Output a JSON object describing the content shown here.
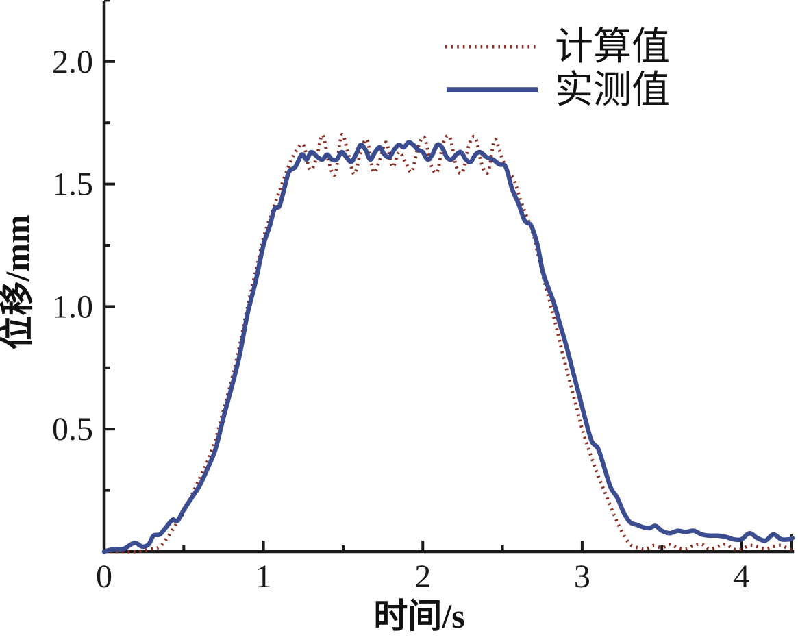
{
  "chart_data": {
    "type": "line",
    "title": "",
    "xlabel": "时间/s",
    "ylabel": "位移/mm",
    "xlim": [
      0,
      4.32
    ],
    "ylim": [
      0,
      2.24
    ],
    "grid": false,
    "legend_position": "top-right-inside",
    "axis_color": "#1a1a1a",
    "x_ticks": {
      "major": [
        0,
        1,
        2,
        3,
        4
      ],
      "major_labels": [
        "0",
        "1",
        "2",
        "3",
        "4"
      ],
      "minor": [
        0.5,
        1.5,
        2.5,
        3.5
      ]
    },
    "y_ticks": {
      "major": [
        0.5,
        1.0,
        1.5,
        2.0
      ],
      "major_labels": [
        "0.5",
        "1.0",
        "1.5",
        "2.0"
      ],
      "minor": [
        0.25,
        0.75,
        1.25,
        1.75,
        2.25
      ]
    },
    "series": [
      {
        "name": "计算值",
        "color": "#8B2E24",
        "line_style": "dotted",
        "points": [
          [
            0.0,
            0.0
          ],
          [
            0.1,
            0.0
          ],
          [
            0.2,
            0.0
          ],
          [
            0.3,
            0.01
          ],
          [
            0.35,
            0.02
          ],
          [
            0.4,
            0.06
          ],
          [
            0.45,
            0.11
          ],
          [
            0.5,
            0.16
          ],
          [
            0.55,
            0.23
          ],
          [
            0.6,
            0.3
          ],
          [
            0.65,
            0.37
          ],
          [
            0.7,
            0.46
          ],
          [
            0.75,
            0.58
          ],
          [
            0.8,
            0.7
          ],
          [
            0.85,
            0.84
          ],
          [
            0.9,
            1.0
          ],
          [
            0.95,
            1.14
          ],
          [
            1.0,
            1.28
          ],
          [
            1.05,
            1.38
          ],
          [
            1.1,
            1.47
          ],
          [
            1.15,
            1.56
          ],
          [
            1.2,
            1.63
          ],
          [
            1.25,
            1.66
          ],
          [
            1.29,
            1.56
          ],
          [
            1.33,
            1.6
          ],
          [
            1.37,
            1.7
          ],
          [
            1.41,
            1.59
          ],
          [
            1.45,
            1.54
          ],
          [
            1.49,
            1.7
          ],
          [
            1.53,
            1.63
          ],
          [
            1.57,
            1.54
          ],
          [
            1.61,
            1.63
          ],
          [
            1.65,
            1.68
          ],
          [
            1.69,
            1.55
          ],
          [
            1.73,
            1.6
          ],
          [
            1.77,
            1.67
          ],
          [
            1.81,
            1.57
          ],
          [
            1.85,
            1.63
          ],
          [
            1.89,
            1.59
          ],
          [
            1.93,
            1.55
          ],
          [
            1.97,
            1.65
          ],
          [
            2.01,
            1.69
          ],
          [
            2.05,
            1.58
          ],
          [
            2.09,
            1.55
          ],
          [
            2.13,
            1.67
          ],
          [
            2.17,
            1.69
          ],
          [
            2.21,
            1.57
          ],
          [
            2.25,
            1.55
          ],
          [
            2.29,
            1.66
          ],
          [
            2.33,
            1.69
          ],
          [
            2.37,
            1.58
          ],
          [
            2.41,
            1.55
          ],
          [
            2.45,
            1.68
          ],
          [
            2.49,
            1.62
          ],
          [
            2.53,
            1.55
          ],
          [
            2.57,
            1.52
          ],
          [
            2.61,
            1.44
          ],
          [
            2.65,
            1.37
          ],
          [
            2.69,
            1.3
          ],
          [
            2.72,
            1.22
          ],
          [
            2.76,
            1.11
          ],
          [
            2.8,
            1.01
          ],
          [
            2.84,
            0.91
          ],
          [
            2.88,
            0.8
          ],
          [
            2.92,
            0.7
          ],
          [
            2.96,
            0.6
          ],
          [
            3.0,
            0.5
          ],
          [
            3.05,
            0.4
          ],
          [
            3.1,
            0.31
          ],
          [
            3.15,
            0.23
          ],
          [
            3.2,
            0.15
          ],
          [
            3.25,
            0.08
          ],
          [
            3.3,
            0.03
          ],
          [
            3.35,
            0.015
          ],
          [
            3.4,
            0.01
          ],
          [
            3.45,
            0.025
          ],
          [
            3.5,
            0.015
          ],
          [
            3.55,
            0.03
          ],
          [
            3.6,
            0.015
          ],
          [
            3.65,
            0.01
          ],
          [
            3.7,
            0.025
          ],
          [
            3.75,
            0.03
          ],
          [
            3.8,
            0.01
          ],
          [
            3.85,
            0.02
          ],
          [
            3.9,
            0.03
          ],
          [
            3.95,
            0.01
          ],
          [
            4.0,
            0.01
          ],
          [
            4.05,
            0.025
          ],
          [
            4.1,
            0.02
          ],
          [
            4.15,
            0.01
          ],
          [
            4.2,
            0.02
          ],
          [
            4.25,
            0.025
          ],
          [
            4.3,
            0.01
          ],
          [
            4.32,
            0.015
          ]
        ]
      },
      {
        "name": "实测值",
        "color": "#3B4D90",
        "line_style": "solid",
        "points": [
          [
            0.0,
            0.0
          ],
          [
            0.06,
            0.01
          ],
          [
            0.12,
            0.01
          ],
          [
            0.17,
            0.03
          ],
          [
            0.2,
            0.035
          ],
          [
            0.24,
            0.02
          ],
          [
            0.28,
            0.03
          ],
          [
            0.31,
            0.065
          ],
          [
            0.35,
            0.07
          ],
          [
            0.39,
            0.1
          ],
          [
            0.43,
            0.13
          ],
          [
            0.46,
            0.125
          ],
          [
            0.5,
            0.17
          ],
          [
            0.55,
            0.22
          ],
          [
            0.6,
            0.27
          ],
          [
            0.65,
            0.34
          ],
          [
            0.7,
            0.42
          ],
          [
            0.75,
            0.55
          ],
          [
            0.8,
            0.67
          ],
          [
            0.85,
            0.8
          ],
          [
            0.9,
            0.97
          ],
          [
            0.95,
            1.1
          ],
          [
            1.0,
            1.25
          ],
          [
            1.04,
            1.33
          ],
          [
            1.07,
            1.4
          ],
          [
            1.1,
            1.41
          ],
          [
            1.13,
            1.48
          ],
          [
            1.16,
            1.55
          ],
          [
            1.2,
            1.57
          ],
          [
            1.24,
            1.62
          ],
          [
            1.27,
            1.6
          ],
          [
            1.3,
            1.63
          ],
          [
            1.34,
            1.61
          ],
          [
            1.37,
            1.6
          ],
          [
            1.4,
            1.62
          ],
          [
            1.43,
            1.6
          ],
          [
            1.46,
            1.6
          ],
          [
            1.49,
            1.63
          ],
          [
            1.52,
            1.61
          ],
          [
            1.55,
            1.59
          ],
          [
            1.58,
            1.62
          ],
          [
            1.61,
            1.66
          ],
          [
            1.64,
            1.64
          ],
          [
            1.67,
            1.6
          ],
          [
            1.7,
            1.63
          ],
          [
            1.73,
            1.65
          ],
          [
            1.76,
            1.62
          ],
          [
            1.79,
            1.61
          ],
          [
            1.82,
            1.64
          ],
          [
            1.85,
            1.66
          ],
          [
            1.88,
            1.65
          ],
          [
            1.91,
            1.67
          ],
          [
            1.94,
            1.66
          ],
          [
            1.97,
            1.64
          ],
          [
            2.0,
            1.63
          ],
          [
            2.03,
            1.6
          ],
          [
            2.06,
            1.62
          ],
          [
            2.09,
            1.66
          ],
          [
            2.12,
            1.65
          ],
          [
            2.15,
            1.61
          ],
          [
            2.18,
            1.6
          ],
          [
            2.21,
            1.62
          ],
          [
            2.24,
            1.63
          ],
          [
            2.27,
            1.6
          ],
          [
            2.3,
            1.59
          ],
          [
            2.33,
            1.62
          ],
          [
            2.36,
            1.63
          ],
          [
            2.4,
            1.61
          ],
          [
            2.44,
            1.6
          ],
          [
            2.48,
            1.58
          ],
          [
            2.52,
            1.57
          ],
          [
            2.56,
            1.48
          ],
          [
            2.6,
            1.42
          ],
          [
            2.64,
            1.35
          ],
          [
            2.68,
            1.33
          ],
          [
            2.72,
            1.25
          ],
          [
            2.75,
            1.15
          ],
          [
            2.78,
            1.09
          ],
          [
            2.82,
            1.02
          ],
          [
            2.86,
            0.93
          ],
          [
            2.9,
            0.84
          ],
          [
            2.94,
            0.74
          ],
          [
            2.98,
            0.64
          ],
          [
            3.02,
            0.54
          ],
          [
            3.06,
            0.45
          ],
          [
            3.1,
            0.42
          ],
          [
            3.14,
            0.34
          ],
          [
            3.18,
            0.26
          ],
          [
            3.22,
            0.22
          ],
          [
            3.26,
            0.16
          ],
          [
            3.3,
            0.12
          ],
          [
            3.34,
            0.11
          ],
          [
            3.38,
            0.1
          ],
          [
            3.42,
            0.095
          ],
          [
            3.46,
            0.105
          ],
          [
            3.5,
            0.085
          ],
          [
            3.55,
            0.075
          ],
          [
            3.6,
            0.085
          ],
          [
            3.65,
            0.08
          ],
          [
            3.7,
            0.085
          ],
          [
            3.75,
            0.07
          ],
          [
            3.8,
            0.065
          ],
          [
            3.85,
            0.065
          ],
          [
            3.9,
            0.06
          ],
          [
            3.95,
            0.05
          ],
          [
            4.0,
            0.05
          ],
          [
            4.05,
            0.075
          ],
          [
            4.1,
            0.055
          ],
          [
            4.15,
            0.045
          ],
          [
            4.2,
            0.07
          ],
          [
            4.25,
            0.05
          ],
          [
            4.3,
            0.05
          ],
          [
            4.32,
            0.055
          ]
        ]
      }
    ]
  }
}
